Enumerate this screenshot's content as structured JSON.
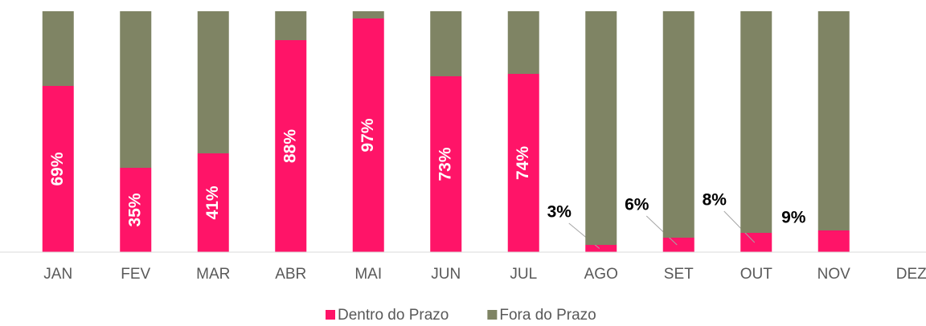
{
  "chart_data": {
    "type": "stacked_bar",
    "categories": [
      "JAN",
      "FEV",
      "MAR",
      "ABR",
      "MAI",
      "JUN",
      "JUL",
      "AGO",
      "SET",
      "OUT",
      "NOV",
      "DEZ"
    ],
    "series": [
      {
        "name": "Dentro do Prazo",
        "color": "#ff1468",
        "values": [
          69,
          35,
          41,
          88,
          97,
          73,
          74,
          3,
          6,
          8,
          9,
          null
        ],
        "value_labels": [
          "69%",
          "35%",
          "41%",
          "88%",
          "97%",
          "73%",
          "74%",
          "3%",
          "6%",
          "8%",
          "9%",
          null
        ]
      },
      {
        "name": "Fora do Prazo",
        "color": "#7f8464",
        "values": [
          31,
          65,
          59,
          12,
          3,
          27,
          26,
          97,
          94,
          92,
          91,
          null
        ]
      }
    ],
    "ylim": [
      0,
      100
    ]
  }
}
